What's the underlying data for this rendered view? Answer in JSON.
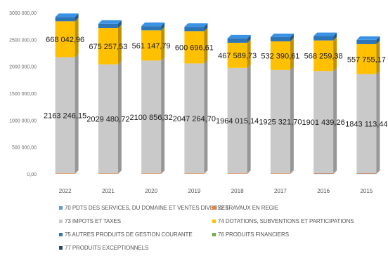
{
  "chart_data": {
    "type": "bar",
    "stacked": true,
    "categories": [
      "2022",
      "2021",
      "2020",
      "2019",
      "2018",
      "2017",
      "2016",
      "2015"
    ],
    "ylim": [
      0,
      3000000
    ],
    "yticks": [
      "0,00",
      "500 000,00",
      "1000 000,00",
      "1500 000,00",
      "2000 000,00",
      "2500 000,00",
      "3000 000,00"
    ],
    "series": [
      {
        "name": "70 PDTS DES SERVICES, DU DOMAINE ET VENTES DIVERSES",
        "color": "#5b9bd5",
        "values": [
          0,
          0,
          0,
          0,
          0,
          0,
          5000,
          5000
        ]
      },
      {
        "name": "72 TRAVAUX EN REGIE",
        "color": "#ed7d31",
        "values": [
          8000,
          8000,
          8000,
          8000,
          8000,
          8000,
          8000,
          8000
        ]
      },
      {
        "name": "73 IMPOTS ET TAXES",
        "color": "#c9c9c9",
        "values": [
          2163246.15,
          2029480.72,
          2100856.32,
          2047264.7,
          1964015.14,
          1925321.7,
          1901439.26,
          1843113.44
        ],
        "labels": [
          "2163 246,15",
          "2029 480,72",
          "2100 856,32",
          "2047 264,70",
          "1964 015,14",
          "1925 321,70",
          "1901 439,26",
          "1843 113,44"
        ]
      },
      {
        "name": "74 DOTATIONS, SUBVENTIONS ET PARTICIPATIONS",
        "color": "#ffc000",
        "values": [
          668042.96,
          675257.53,
          561147.79,
          600696.61,
          467589.73,
          532390.61,
          568259.38,
          557755.17
        ],
        "labels": [
          "668 042,96",
          "675 257,53",
          "561 147,79",
          "600 696,61",
          "467 589,73",
          "532 390,61",
          "568 259,38",
          "557 755,17"
        ]
      },
      {
        "name": "75 AUTRES PRODUITS DE GESTION COURANTE",
        "color": "#2e75b6",
        "values": [
          80000,
          80000,
          80000,
          80000,
          80000,
          80000,
          80000,
          80000
        ]
      },
      {
        "name": "76 PRODUITS FINANCIERS",
        "color": "#70ad47",
        "values": [
          0,
          0,
          0,
          0,
          0,
          0,
          0,
          0
        ]
      },
      {
        "name": "77 PRODUITS EXCEPTIONNELS",
        "color": "#264478",
        "values": [
          0,
          0,
          0,
          0,
          0,
          0,
          0,
          0
        ]
      }
    ],
    "legend_position": "bottom"
  }
}
